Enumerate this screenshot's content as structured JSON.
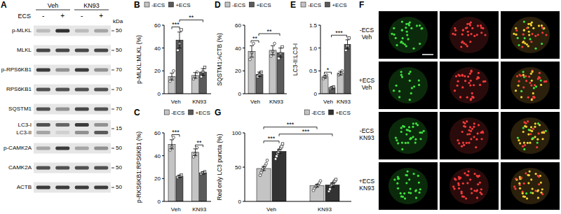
{
  "blot": {
    "title": "A",
    "header": "ECS",
    "groups": [
      "Veh",
      "KN93"
    ],
    "lanes": [
      "-",
      "+",
      "-",
      "+"
    ],
    "unit": "kDa",
    "rows": [
      {
        "bands": [
          {
            "label": "p-MLKL",
            "intensity": [
              0.2,
              0.85,
              0.2,
              0.3
            ]
          }
        ],
        "marker": 50
      },
      {
        "bands": [
          {
            "label": "MLKL",
            "intensity": [
              0.75,
              0.75,
              0.75,
              0.75
            ]
          }
        ],
        "marker": 50
      },
      {
        "bands": [
          {
            "label": "p-RPS6KB1",
            "intensity": [
              0.8,
              0.4,
              0.8,
              0.4
            ]
          }
        ],
        "marker": 70
      },
      {
        "bands": [
          {
            "label": "RPS6KB1",
            "intensity": [
              0.7,
              0.7,
              0.7,
              0.7
            ]
          }
        ],
        "marker": 70
      },
      {
        "bands": [
          {
            "label": "SQSTM1",
            "intensity": [
              0.7,
              0.4,
              0.75,
              0.7
            ]
          }
        ],
        "marker": 70
      },
      {
        "bands": [
          {
            "label": "LC3-I",
            "intensity": [
              0.7,
              0.6,
              0.8,
              0.4
            ]
          },
          {
            "label": "LC3-II",
            "intensity": [
              0.3,
              0.1,
              0.4,
              0.65
            ]
          }
        ],
        "marker": 15
      },
      {
        "bands": [
          {
            "label": "p-CAMK2A",
            "intensity": [
              0.3,
              0.8,
              0.3,
              0.4
            ]
          }
        ],
        "marker": 50
      },
      {
        "bands": [
          {
            "label": "CAMK2A",
            "intensity": [
              0.7,
              0.7,
              0.7,
              0.7
            ]
          }
        ],
        "marker": 50
      },
      {
        "bands": [
          {
            "label": "ACTB",
            "intensity": [
              0.8,
              0.8,
              0.8,
              0.8
            ]
          }
        ],
        "marker": 50
      }
    ]
  },
  "chart_data": [
    {
      "type": "bar",
      "title": "B",
      "ylabel": "p-MLKL:MLKL (%)",
      "categories": [
        "Veh",
        "KN93"
      ],
      "ylim": [
        0,
        60
      ],
      "yticks": [
        0,
        20,
        40,
        60
      ],
      "legend": "upper left",
      "series": [
        {
          "name": "-ECS",
          "color": "#c4c4c4",
          "marker": "circle",
          "values": [
            15,
            16
          ],
          "errors": [
            3,
            2.5
          ],
          "points": [
            [
              11,
              14,
              20
            ],
            [
              13,
              15,
              19
            ]
          ]
        },
        {
          "name": "+ECS",
          "color": "#5a5a5a",
          "marker": "square",
          "values": [
            47,
            19
          ],
          "errors": [
            7,
            3
          ],
          "points": [
            [
              38,
              44,
              56
            ],
            [
              15,
              19,
              23
            ]
          ]
        }
      ],
      "comparisons": [
        {
          "from": [
            "Veh",
            "-ECS"
          ],
          "to": [
            "Veh",
            "+ECS"
          ],
          "label": "***"
        },
        {
          "from": [
            "Veh",
            "+ECS"
          ],
          "to": [
            "KN93",
            "+ECS"
          ],
          "label": "**"
        }
      ]
    },
    {
      "type": "bar",
      "title": "C",
      "ylabel": "p-RKS6KB1:RPS6KB1 (%)",
      "categories": [
        "Veh",
        "KN93"
      ],
      "ylim": [
        0,
        60
      ],
      "yticks": [
        0,
        20,
        40,
        60
      ],
      "legend": "upper right",
      "series": [
        {
          "name": "-ECS",
          "color": "#c4c4c4",
          "marker": "circle",
          "values": [
            50,
            43
          ],
          "errors": [
            4,
            3
          ],
          "points": [
            [
              45,
              48,
              56
            ],
            [
              39,
              42,
              47
            ]
          ]
        },
        {
          "name": "+ECS",
          "color": "#5a5a5a",
          "marker": "square",
          "values": [
            22,
            25
          ],
          "errors": [
            1,
            1
          ],
          "points": [
            [
              21,
              22,
              23
            ],
            [
              24,
              25,
              26
            ]
          ]
        }
      ],
      "comparisons": [
        {
          "from": [
            "Veh",
            "-ECS"
          ],
          "to": [
            "Veh",
            "+ECS"
          ],
          "label": "***"
        },
        {
          "from": [
            "KN93",
            "-ECS"
          ],
          "to": [
            "KN93",
            "+ECS"
          ],
          "label": "**"
        }
      ]
    },
    {
      "type": "bar",
      "title": "D",
      "ylabel": "SQSTM1:ACTB (%)",
      "categories": [
        "Veh",
        "KN93"
      ],
      "ylim": [
        0,
        60
      ],
      "yticks": [
        0,
        20,
        40,
        60
      ],
      "legend": "upper left",
      "series": [
        {
          "name": "-ECS",
          "color": "#c4c4c4",
          "marker": "circle",
          "values": [
            37,
            38
          ],
          "errors": [
            5,
            4
          ],
          "points": [
            [
              30,
              36,
              44
            ],
            [
              33,
              37,
              44
            ]
          ]
        },
        {
          "name": "+ECS",
          "color": "#5a5a5a",
          "marker": "square",
          "values": [
            17,
            36
          ],
          "errors": [
            2,
            4
          ],
          "points": [
            [
              15,
              17,
              19
            ],
            [
              31,
              35,
              41
            ]
          ]
        }
      ],
      "comparisons": [
        {
          "from": [
            "Veh",
            "-ECS"
          ],
          "to": [
            "Veh",
            "+ECS"
          ],
          "label": "**"
        },
        {
          "from": [
            "Veh",
            "+ECS"
          ],
          "to": [
            "KN93",
            "+ECS"
          ],
          "label": "**"
        }
      ]
    },
    {
      "type": "bar",
      "title": "E",
      "ylabel": "LC3-II:LC3-I",
      "categories": [
        "Veh",
        "KN93"
      ],
      "ylim": [
        0,
        1.5
      ],
      "yticks": [
        0,
        0.5,
        {
          "value": 1,
          "label": "1.0"
        },
        1.5
      ],
      "legend": "upper left",
      "series": [
        {
          "name": "-ECS",
          "color": "#c4c4c4",
          "marker": "circle",
          "values": [
            0.37,
            0.45
          ],
          "errors": [
            0.03,
            0.04
          ],
          "points": [
            [
              0.33,
              0.37,
              0.41
            ],
            [
              0.41,
              0.44,
              0.5
            ]
          ]
        },
        {
          "name": "+ECS",
          "color": "#5a5a5a",
          "marker": "square",
          "values": [
            0.13,
            1.08
          ],
          "errors": [
            0.02,
            0.1
          ],
          "points": [
            [
              0.11,
              0.13,
              0.15
            ],
            [
              0.95,
              1.05,
              1.22
            ]
          ]
        }
      ],
      "comparisons": [
        {
          "from": [
            "Veh",
            "-ECS"
          ],
          "to": [
            "Veh",
            "+ECS"
          ],
          "label": "*"
        },
        {
          "from": [
            "Veh",
            "+ECS"
          ],
          "to": [
            "KN93",
            "+ECS"
          ],
          "label": "***"
        }
      ]
    },
    {
      "type": "bar",
      "title": "G",
      "ylabel": "Red only LC3 puncta (%)",
      "categories": [
        "Veh",
        "KN93"
      ],
      "ylim": [
        0,
        100
      ],
      "yticks": [
        0,
        50,
        100
      ],
      "legend": "upper right",
      "series": [
        {
          "name": "-ECS",
          "color": "#c4c4c4",
          "marker": "circle",
          "values": [
            48,
            23
          ],
          "errors": [
            3,
            2
          ],
          "points": [
            [
              38,
              42,
              45,
              48,
              50,
              52,
              55,
              60
            ],
            [
              16,
              19,
              21,
              22,
              24,
              25,
              27,
              30
            ]
          ]
        },
        {
          "name": "+ECS",
          "color": "#333333",
          "marker": "square",
          "values": [
            73,
            24
          ],
          "errors": [
            3,
            3
          ],
          "points": [
            [
              62,
              66,
              70,
              72,
              75,
              78,
              80,
              84
            ],
            [
              15,
              18,
              22,
              24,
              26,
              28,
              30,
              32
            ]
          ]
        }
      ],
      "comparisons": [
        {
          "from": [
            "Veh",
            "-ECS"
          ],
          "to": [
            "Veh",
            "+ECS"
          ],
          "label": "***"
        },
        {
          "from": [
            "Veh",
            "+ECS"
          ],
          "to": [
            "KN93",
            "+ECS"
          ],
          "label": "***"
        },
        {
          "from": [
            "Veh",
            "-ECS"
          ],
          "to": [
            "KN93",
            "-ECS"
          ],
          "label": "***"
        }
      ]
    }
  ],
  "images": {
    "title": "F",
    "rows": [
      [
        "-ECS",
        "Veh"
      ],
      [
        "+ECS",
        "Veh"
      ],
      [
        "-ECS",
        "KN93"
      ],
      [
        "+ECS",
        "KN93"
      ]
    ]
  }
}
